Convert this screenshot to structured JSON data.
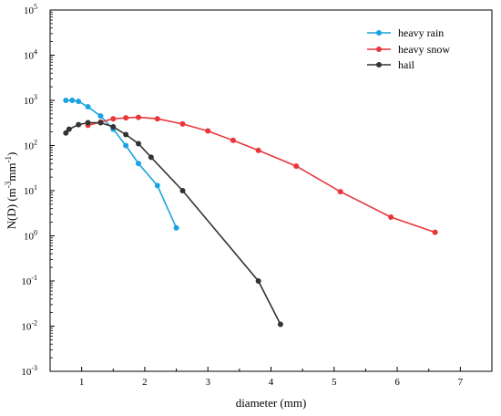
{
  "chart_data": {
    "type": "line",
    "title": "",
    "xlabel": "diameter (mm)",
    "ylabel": "N(D) (m-3mm-1)",
    "ylabel_parts": {
      "base": "N(D) (m",
      "exp1": "-3",
      "mid": "mm",
      "exp2": "-1",
      "end": ")"
    },
    "xlim": [
      0.5,
      7.5
    ],
    "ylim": [
      0.001,
      100000
    ],
    "yscale": "log",
    "grid": false,
    "legend_position": "top-right",
    "x_ticks": [
      1,
      2,
      3,
      4,
      5,
      6,
      7
    ],
    "x_tick_labels": [
      "1",
      "2",
      "3",
      "4",
      "5",
      "6",
      "7"
    ],
    "y_ticks": [
      {
        "value": 0.001,
        "base": "10",
        "exp": "-3"
      },
      {
        "value": 0.01,
        "base": "10",
        "exp": "-2"
      },
      {
        "value": 0.1,
        "base": "10",
        "exp": "-1"
      },
      {
        "value": 1,
        "base": "10",
        "exp": "0"
      },
      {
        "value": 10,
        "base": "10",
        "exp": "1"
      },
      {
        "value": 100,
        "base": "10",
        "exp": "2"
      },
      {
        "value": 1000,
        "base": "10",
        "exp": "3"
      },
      {
        "value": 10000,
        "base": "10",
        "exp": "4"
      },
      {
        "value": 100000,
        "base": "10",
        "exp": "5"
      }
    ],
    "series": [
      {
        "name": "heavy rain",
        "color": "#1aa3e0",
        "points": [
          {
            "x": 0.75,
            "y": 1000
          },
          {
            "x": 0.85,
            "y": 1000
          },
          {
            "x": 0.95,
            "y": 950
          },
          {
            "x": 1.1,
            "y": 720
          },
          {
            "x": 1.3,
            "y": 450
          },
          {
            "x": 1.5,
            "y": 230
          },
          {
            "x": 1.7,
            "y": 100
          },
          {
            "x": 1.9,
            "y": 40
          },
          {
            "x": 2.2,
            "y": 13
          },
          {
            "x": 2.5,
            "y": 1.5
          }
        ]
      },
      {
        "name": "heavy snow",
        "color": "#e8363a",
        "points": [
          {
            "x": 1.1,
            "y": 280
          },
          {
            "x": 1.3,
            "y": 330
          },
          {
            "x": 1.5,
            "y": 390
          },
          {
            "x": 1.7,
            "y": 410
          },
          {
            "x": 1.9,
            "y": 420
          },
          {
            "x": 2.2,
            "y": 390
          },
          {
            "x": 2.6,
            "y": 300
          },
          {
            "x": 3.0,
            "y": 210
          },
          {
            "x": 3.4,
            "y": 130
          },
          {
            "x": 3.8,
            "y": 78
          },
          {
            "x": 4.4,
            "y": 35
          },
          {
            "x": 5.1,
            "y": 9.5
          },
          {
            "x": 5.9,
            "y": 2.6
          },
          {
            "x": 6.6,
            "y": 1.2
          }
        ]
      },
      {
        "name": "hail",
        "color": "#333333",
        "points": [
          {
            "x": 0.75,
            "y": 190
          },
          {
            "x": 0.8,
            "y": 230
          },
          {
            "x": 0.95,
            "y": 290
          },
          {
            "x": 1.1,
            "y": 320
          },
          {
            "x": 1.3,
            "y": 320
          },
          {
            "x": 1.5,
            "y": 260
          },
          {
            "x": 1.7,
            "y": 175
          },
          {
            "x": 1.9,
            "y": 110
          },
          {
            "x": 2.1,
            "y": 55
          },
          {
            "x": 2.6,
            "y": 10
          },
          {
            "x": 3.8,
            "y": 0.1
          },
          {
            "x": 4.15,
            "y": 0.011
          }
        ]
      }
    ]
  }
}
